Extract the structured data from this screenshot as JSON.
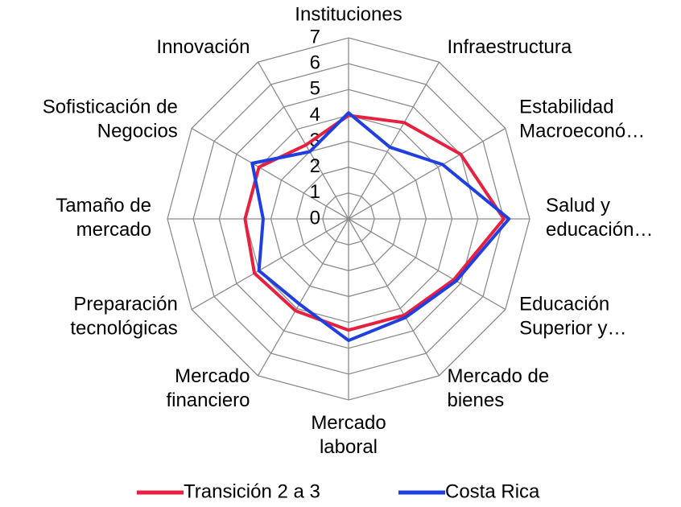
{
  "chart_data": {
    "type": "radar",
    "categories": [
      "Instituciones",
      "Infraestructura",
      "Estabilidad\nMacroeconó…",
      "Salud y\neducación…",
      "Educación\nSuperior y…",
      "Mercado de\nbienes",
      "Mercado\nlaboral",
      "Mercado\nfinanciero",
      "Preparación\ntecnológicas",
      "Tamaño de\nmercado",
      "Sofisticación de\nNegocios",
      "Innovación"
    ],
    "series": [
      {
        "name": "Transición 2 a 3",
        "color": "#e8203f",
        "values": [
          4.0,
          4.3,
          5.0,
          6.0,
          4.7,
          4.3,
          4.3,
          4.1,
          4.2,
          4.0,
          4.0,
          3.3
        ]
      },
      {
        "name": "Costa Rica",
        "color": "#1f3fe0",
        "values": [
          4.1,
          3.2,
          4.2,
          6.2,
          4.8,
          4.4,
          4.7,
          3.8,
          4.0,
          3.3,
          4.3,
          3.0
        ]
      }
    ],
    "rlim": [
      0,
      7
    ],
    "rticks": [
      0,
      1,
      2,
      3,
      4,
      5,
      6,
      7
    ],
    "grid": true,
    "legend": "bottom"
  }
}
